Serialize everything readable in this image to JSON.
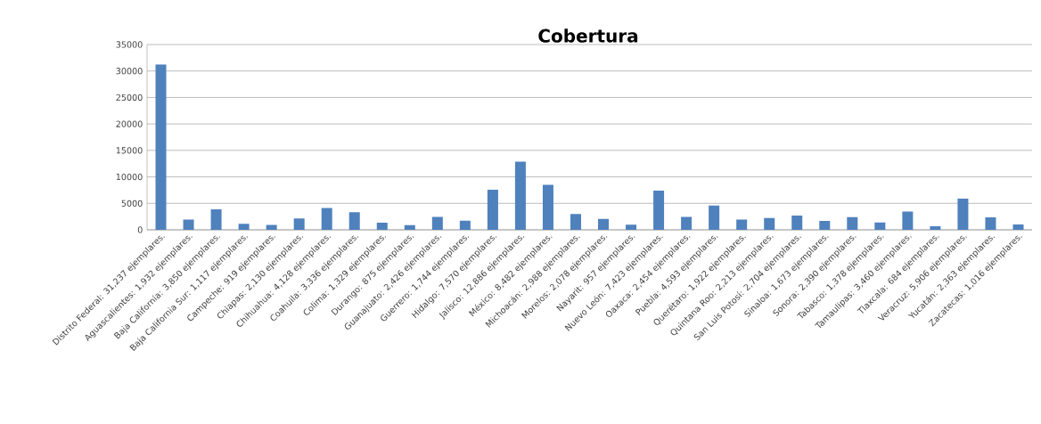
{
  "chart_data": {
    "type": "bar",
    "title": "Cobertura",
    "categories": [
      "Distrito Federal: 31,237 ejemplares.",
      "Aguascalientes: 1,932 ejemplares.",
      "Baja California: 3,850 ejemplares.",
      "Baja California Sur: 1,117 ejemplares.",
      "Campeche: 919 ejemplares.",
      "Chiapas: 2,130 ejemplares.",
      "Chihuahua: 4,128 ejemplares.",
      "Coahuila: 3,336 ejemplares.",
      "Colima: 1,329 ejemplares.",
      "Durango: 875 ejemplares.",
      "Guanajuato: 2,426 ejemplares.",
      "Guerrero: 1,744 ejemplares.",
      "Hidalgo: 7,570 ejemplares.",
      "Jalisco: 12,886 ejemplares.",
      "México: 8,482 ejemplares.",
      "Michoacán: 2,988 ejemplares.",
      "Morelos: 2,078 ejemplares.",
      "Nayarit: 957 ejemplares.",
      "Nuevo León: 7,423 ejemplares.",
      "Oaxaca: 2,454 ejemplares.",
      "Puebla: 4,593 ejemplares.",
      "Querétaro: 1,922 ejemplares.",
      "Quintana Roo: 2,213 ejemplares.",
      "San Luis Potosí: 2,704 ejemplares.",
      "Sinaloa: 1,673 ejemplares.",
      "Sonora: 2,390 ejemplares.",
      "Tabasco: 1,378 ejemplares.",
      "Tamaulipas: 3,460 ejemplares.",
      "Tlaxcala: 684 ejemplares.",
      "Veracruz: 5,906 ejemplares.",
      "Yucatán: 2,363 ejemplares.",
      "Zacatecas: 1,016 ejemplares."
    ],
    "values": [
      31237,
      1932,
      3850,
      1117,
      919,
      2130,
      4128,
      3336,
      1329,
      875,
      2426,
      1744,
      7570,
      12886,
      8482,
      2988,
      2078,
      957,
      7423,
      2454,
      4593,
      1922,
      2213,
      2704,
      1673,
      2390,
      1378,
      3460,
      684,
      5906,
      2363,
      1016
    ],
    "color": "#4f81bd",
    "ylim": [
      0,
      35000
    ],
    "yticks": [
      0,
      5000,
      10000,
      15000,
      20000,
      25000,
      30000,
      35000
    ],
    "grid": "y"
  }
}
